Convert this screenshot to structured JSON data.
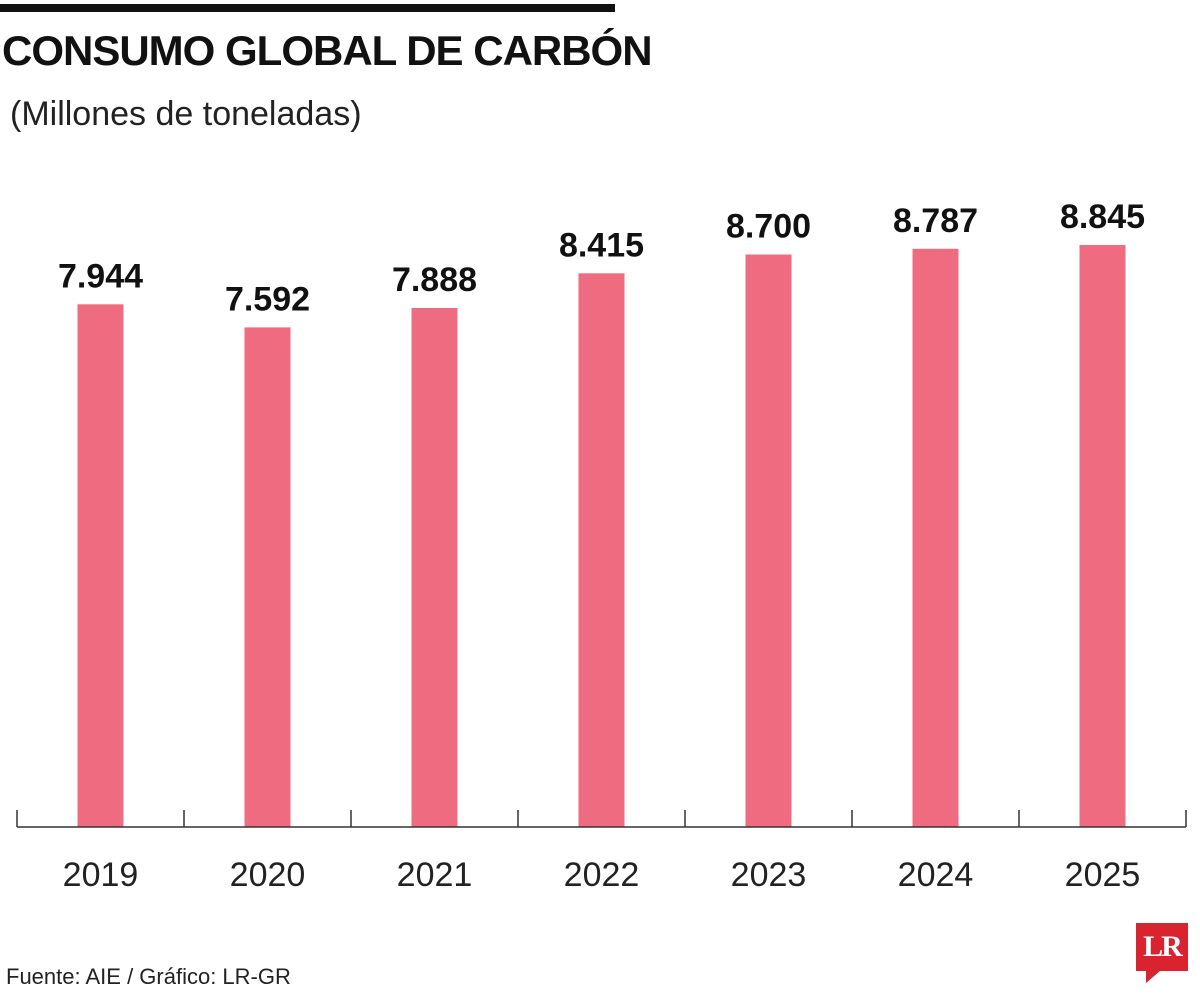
{
  "header": {
    "title": "CONSUMO GLOBAL DE CARBÓN",
    "subtitle": "(Millones de toneladas)"
  },
  "footer": {
    "source": "Fuente: AIE / Gráfico: LR-GR",
    "logo_text": "LR"
  },
  "colors": {
    "bar": "#ee6b80",
    "axis": "#333333",
    "text": "#111111",
    "logo": "#d9232e"
  },
  "chart_data": {
    "type": "bar",
    "title": "CONSUMO GLOBAL DE CARBÓN",
    "subtitle": "(Millones de toneladas)",
    "categories": [
      "2019",
      "2020",
      "2021",
      "2022",
      "2023",
      "2024",
      "2025"
    ],
    "values": [
      7944,
      7592,
      7888,
      8415,
      8700,
      8787,
      8845
    ],
    "value_labels": [
      "7.944",
      "7.592",
      "7.888",
      "8.415",
      "8.700",
      "8.787",
      "8.845"
    ],
    "ylim": [
      0,
      9000
    ],
    "grid": false,
    "legend": "none"
  }
}
